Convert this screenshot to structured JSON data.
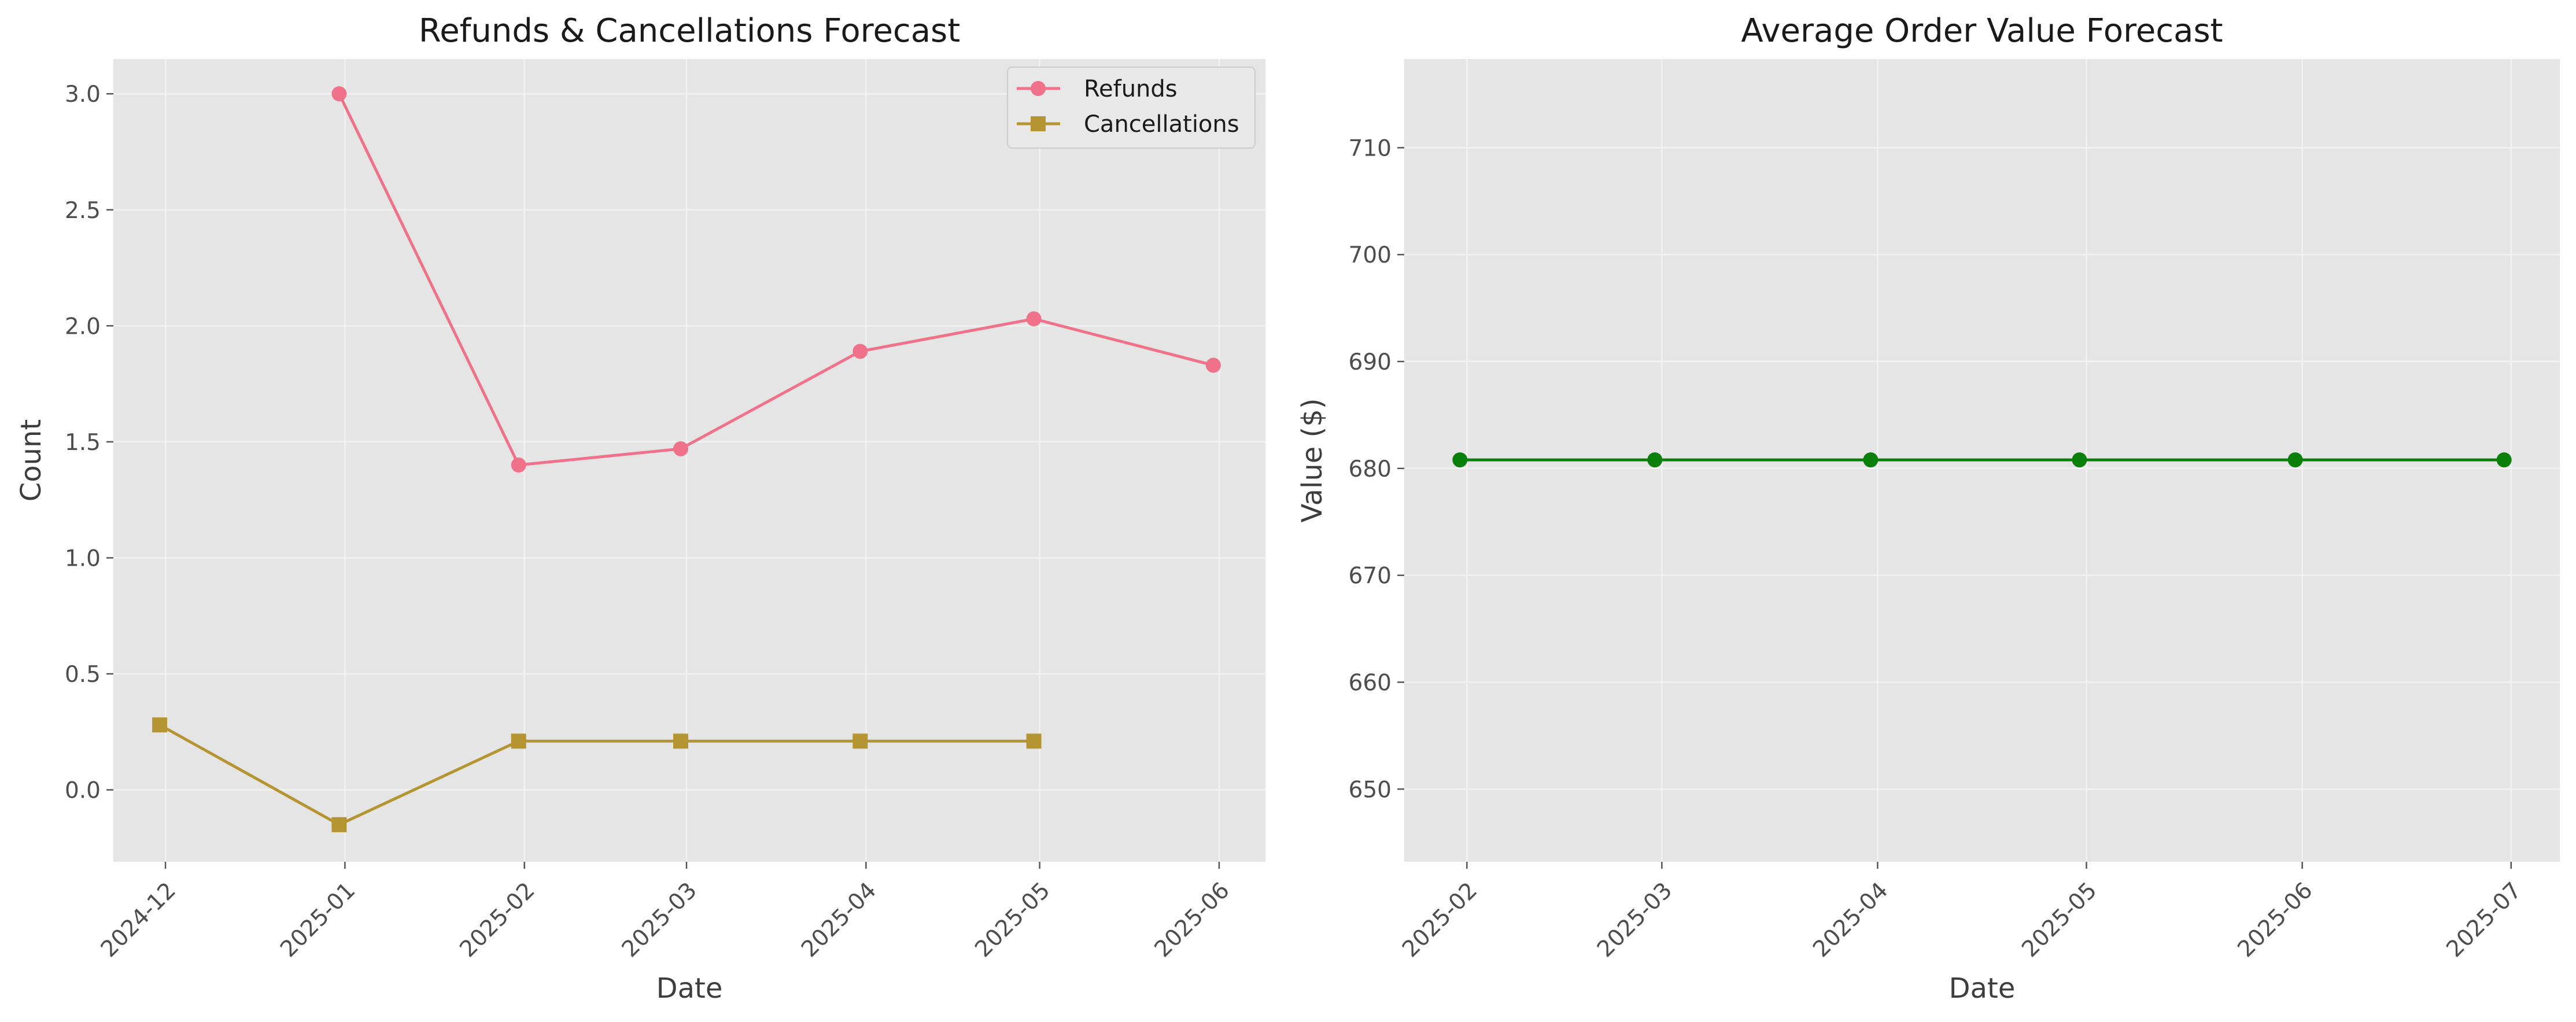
{
  "chart_data": [
    {
      "type": "line",
      "title": "Refunds & Cancellations Forecast",
      "xlabel": "Date",
      "ylabel": "Count",
      "x_tick_labels": [
        "2024-12",
        "2025-01",
        "2025-02",
        "2025-03",
        "2025-04",
        "2025-05",
        "2025-06"
      ],
      "y_ticks": [
        0.0,
        0.5,
        1.0,
        1.5,
        2.0,
        2.5,
        3.0
      ],
      "y_tick_labels": [
        "0.0",
        "0.5",
        "1.0",
        "1.5",
        "2.0",
        "2.5",
        "3.0"
      ],
      "ylim": [
        -0.31,
        3.15
      ],
      "xlim": [
        "2024-11-22",
        "2025-06-09"
      ],
      "grid": true,
      "legend": "top-right",
      "series": [
        {
          "name": "Refunds",
          "color": "#f0718a",
          "marker": "circle",
          "points": [
            {
              "x": "2024-12-31",
              "y": 3.0
            },
            {
              "x": "2025-01-31",
              "y": 1.4
            },
            {
              "x": "2025-02-28",
              "y": 1.47
            },
            {
              "x": "2025-03-31",
              "y": 1.89
            },
            {
              "x": "2025-04-30",
              "y": 2.03
            },
            {
              "x": "2025-05-31",
              "y": 1.83
            }
          ]
        },
        {
          "name": "Cancellations",
          "color": "#b59532",
          "marker": "square",
          "points": [
            {
              "x": "2024-11-30",
              "y": 0.28
            },
            {
              "x": "2024-12-31",
              "y": -0.15
            },
            {
              "x": "2025-01-31",
              "y": 0.21
            },
            {
              "x": "2025-02-28",
              "y": 0.21
            },
            {
              "x": "2025-03-31",
              "y": 0.21
            },
            {
              "x": "2025-04-30",
              "y": 0.21
            }
          ]
        }
      ]
    },
    {
      "type": "line",
      "title": "Average Order Value Forecast",
      "xlabel": "Date",
      "ylabel": "Value ($)",
      "x_tick_labels": [
        "2025-02",
        "2025-03",
        "2025-04",
        "2025-05",
        "2025-06",
        "2025-07"
      ],
      "y_ticks": [
        650,
        660,
        670,
        680,
        690,
        700,
        710
      ],
      "y_tick_labels": [
        "650",
        "660",
        "670",
        "680",
        "690",
        "700",
        "710"
      ],
      "ylim": [
        643.2,
        718.3
      ],
      "xlim": [
        "2025-01-23",
        "2025-07-08"
      ],
      "grid": true,
      "series": [
        {
          "color": "#0a800a",
          "marker": "circle",
          "points": [
            {
              "x": "2025-01-31",
              "y": 680.8
            },
            {
              "x": "2025-02-28",
              "y": 680.8
            },
            {
              "x": "2025-03-31",
              "y": 680.8
            },
            {
              "x": "2025-04-30",
              "y": 680.8
            },
            {
              "x": "2025-05-31",
              "y": 680.8
            },
            {
              "x": "2025-06-30",
              "y": 680.8
            }
          ]
        }
      ]
    }
  ]
}
